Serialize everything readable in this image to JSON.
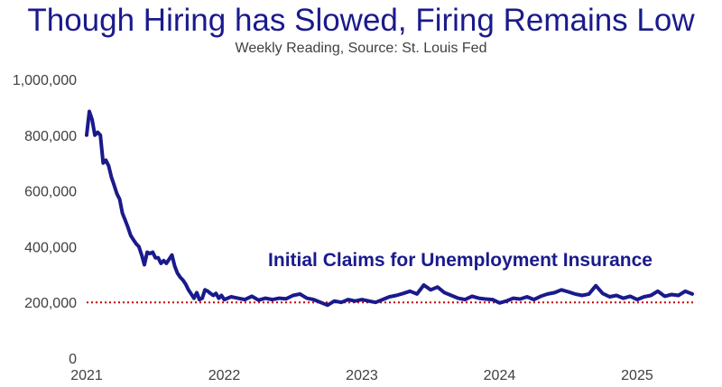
{
  "colors": {
    "title": "#1a1a8c",
    "line": "#1a1a8c",
    "reference": "#c00000",
    "axis_text": "#404040"
  },
  "chart_data": {
    "type": "line",
    "title": "Though Hiring has Slowed, Firing Remains Low",
    "subtitle": "Weekly Reading, Source: St. Louis Fed",
    "annotation": "Initial Claims for Unemployment Insurance",
    "xlabel": "",
    "ylabel": "",
    "xlim": [
      2021.0,
      2025.42
    ],
    "ylim": [
      0,
      1000000
    ],
    "y_ticks": [
      "0",
      "200,000",
      "400,000",
      "600,000",
      "800,000",
      "1,000,000"
    ],
    "y_tick_values": [
      0,
      200000,
      400000,
      600000,
      800000,
      1000000
    ],
    "x_ticks": [
      "2021",
      "2022",
      "2023",
      "2024",
      "2025"
    ],
    "x_tick_values": [
      2021,
      2022,
      2023,
      2024,
      2025
    ],
    "grid": false,
    "reference_line": {
      "value": 200000,
      "style": "dotted"
    },
    "series": [
      {
        "values": [
          [
            2021.0,
            800000
          ],
          [
            2021.02,
            885000
          ],
          [
            2021.04,
            855000
          ],
          [
            2021.06,
            800000
          ],
          [
            2021.08,
            810000
          ],
          [
            2021.1,
            800000
          ],
          [
            2021.12,
            700000
          ],
          [
            2021.14,
            710000
          ],
          [
            2021.16,
            690000
          ],
          [
            2021.18,
            650000
          ],
          [
            2021.2,
            620000
          ],
          [
            2021.22,
            590000
          ],
          [
            2021.24,
            570000
          ],
          [
            2021.26,
            520000
          ],
          [
            2021.28,
            495000
          ],
          [
            2021.3,
            470000
          ],
          [
            2021.32,
            440000
          ],
          [
            2021.34,
            425000
          ],
          [
            2021.36,
            410000
          ],
          [
            2021.38,
            400000
          ],
          [
            2021.4,
            370000
          ],
          [
            2021.42,
            335000
          ],
          [
            2021.44,
            380000
          ],
          [
            2021.46,
            375000
          ],
          [
            2021.48,
            380000
          ],
          [
            2021.5,
            360000
          ],
          [
            2021.52,
            360000
          ],
          [
            2021.54,
            340000
          ],
          [
            2021.56,
            350000
          ],
          [
            2021.58,
            340000
          ],
          [
            2021.6,
            355000
          ],
          [
            2021.62,
            370000
          ],
          [
            2021.64,
            330000
          ],
          [
            2021.66,
            305000
          ],
          [
            2021.68,
            290000
          ],
          [
            2021.7,
            280000
          ],
          [
            2021.72,
            265000
          ],
          [
            2021.74,
            245000
          ],
          [
            2021.76,
            230000
          ],
          [
            2021.78,
            215000
          ],
          [
            2021.8,
            235000
          ],
          [
            2021.82,
            210000
          ],
          [
            2021.84,
            215000
          ],
          [
            2021.86,
            245000
          ],
          [
            2021.88,
            240000
          ],
          [
            2021.9,
            232000
          ],
          [
            2021.92,
            225000
          ],
          [
            2021.94,
            232000
          ],
          [
            2021.96,
            215000
          ],
          [
            2021.98,
            225000
          ],
          [
            2022.0,
            210000
          ],
          [
            2022.05,
            220000
          ],
          [
            2022.1,
            215000
          ],
          [
            2022.15,
            210000
          ],
          [
            2022.2,
            222000
          ],
          [
            2022.25,
            208000
          ],
          [
            2022.3,
            215000
          ],
          [
            2022.35,
            210000
          ],
          [
            2022.4,
            215000
          ],
          [
            2022.45,
            213000
          ],
          [
            2022.5,
            225000
          ],
          [
            2022.55,
            230000
          ],
          [
            2022.6,
            215000
          ],
          [
            2022.65,
            210000
          ],
          [
            2022.7,
            200000
          ],
          [
            2022.75,
            190000
          ],
          [
            2022.8,
            205000
          ],
          [
            2022.85,
            200000
          ],
          [
            2022.9,
            210000
          ],
          [
            2022.95,
            205000
          ],
          [
            2023.0,
            210000
          ],
          [
            2023.05,
            205000
          ],
          [
            2023.1,
            200000
          ],
          [
            2023.15,
            210000
          ],
          [
            2023.2,
            220000
          ],
          [
            2023.25,
            225000
          ],
          [
            2023.3,
            232000
          ],
          [
            2023.35,
            240000
          ],
          [
            2023.4,
            230000
          ],
          [
            2023.45,
            262000
          ],
          [
            2023.5,
            245000
          ],
          [
            2023.55,
            255000
          ],
          [
            2023.6,
            235000
          ],
          [
            2023.65,
            225000
          ],
          [
            2023.7,
            215000
          ],
          [
            2023.75,
            210000
          ],
          [
            2023.8,
            222000
          ],
          [
            2023.85,
            215000
          ],
          [
            2023.9,
            212000
          ],
          [
            2023.95,
            210000
          ],
          [
            2024.0,
            198000
          ],
          [
            2024.05,
            205000
          ],
          [
            2024.1,
            215000
          ],
          [
            2024.15,
            212000
          ],
          [
            2024.2,
            220000
          ],
          [
            2024.25,
            210000
          ],
          [
            2024.3,
            222000
          ],
          [
            2024.35,
            230000
          ],
          [
            2024.4,
            235000
          ],
          [
            2024.45,
            245000
          ],
          [
            2024.5,
            238000
          ],
          [
            2024.55,
            230000
          ],
          [
            2024.6,
            225000
          ],
          [
            2024.65,
            230000
          ],
          [
            2024.7,
            260000
          ],
          [
            2024.75,
            232000
          ],
          [
            2024.8,
            220000
          ],
          [
            2024.85,
            225000
          ],
          [
            2024.9,
            215000
          ],
          [
            2024.95,
            222000
          ],
          [
            2025.0,
            210000
          ],
          [
            2025.05,
            220000
          ],
          [
            2025.1,
            225000
          ],
          [
            2025.15,
            240000
          ],
          [
            2025.2,
            222000
          ],
          [
            2025.25,
            228000
          ],
          [
            2025.3,
            225000
          ],
          [
            2025.35,
            240000
          ],
          [
            2025.4,
            230000
          ]
        ]
      }
    ]
  }
}
